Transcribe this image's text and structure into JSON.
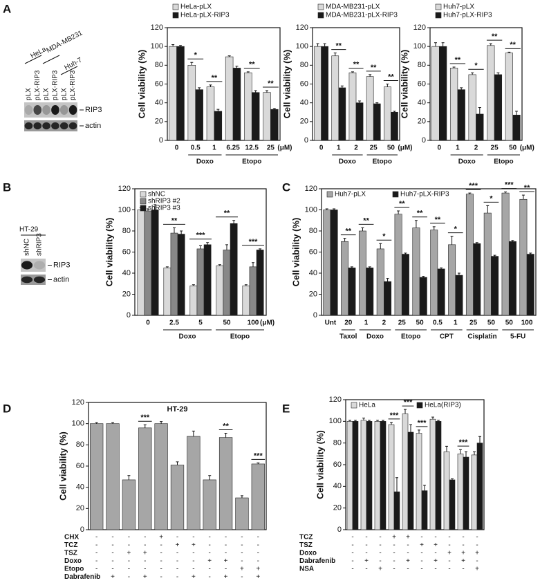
{
  "panels": [
    "A",
    "B",
    "C",
    "D",
    "E"
  ],
  "blots": [
    {
      "cell_lines": [
        "HeLa",
        "MDA-MB231",
        "Huh-7"
      ],
      "lanes": [
        "pLX",
        "pLX-RIP3",
        "pLX",
        "pLX-RIP3",
        "pLX",
        "pLX-RIP3"
      ],
      "bands": [
        "RIP3",
        "actin"
      ]
    },
    {
      "cell_lines": [
        "HT-29"
      ],
      "lanes": [
        "shNC",
        "shRIP3"
      ],
      "bands": [
        "RIP3",
        "actin"
      ]
    }
  ],
  "chart_data": [
    {
      "type": "bar",
      "ylabel": "Cell viability (%)",
      "ylim": [
        0,
        120
      ],
      "yticks": [
        0,
        20,
        40,
        60,
        80,
        100,
        120
      ],
      "legend": "above",
      "categories": [
        "0",
        "0.5",
        "1",
        "6.25",
        "12.5",
        "25"
      ],
      "x_unit": "(μM)",
      "groups": [
        {
          "name": null,
          "size": 1
        },
        {
          "name": "Doxo",
          "size": 2
        },
        {
          "name": "Etopo",
          "size": 3
        }
      ],
      "significance": [
        null,
        "*",
        "**",
        null,
        "**",
        "**"
      ],
      "series": [
        {
          "name": "HeLa-pLX",
          "color": "#d9d9d9",
          "values": [
            100,
            80,
            57,
            89,
            72,
            51
          ],
          "errors": [
            2,
            3,
            2,
            1,
            1,
            2
          ]
        },
        {
          "name": "HeLa-pLX-RIP3",
          "color": "#1a1a1a",
          "values": [
            100,
            54,
            31,
            77,
            51,
            33
          ],
          "errors": [
            1,
            2,
            2,
            2,
            2,
            1
          ]
        }
      ]
    },
    {
      "type": "bar",
      "ylabel": "Cell viability (%)",
      "ylim": [
        0,
        120
      ],
      "yticks": [
        0,
        20,
        40,
        60,
        80,
        100,
        120
      ],
      "legend": "above",
      "categories": [
        "0",
        "1",
        "2",
        "25",
        "50"
      ],
      "x_unit": "(μM)",
      "groups": [
        {
          "name": null,
          "size": 1
        },
        {
          "name": "Doxo",
          "size": 2
        },
        {
          "name": "Etopo",
          "size": 2
        }
      ],
      "significance": [
        null,
        "**",
        "**",
        "**",
        "**"
      ],
      "series": [
        {
          "name": "MDA-MB231-pLX",
          "color": "#d9d9d9",
          "values": [
            100,
            90,
            72,
            68,
            57
          ],
          "errors": [
            3,
            3,
            1,
            2,
            3
          ]
        },
        {
          "name": "MDA-MB231-pLX-RIP3",
          "color": "#1a1a1a",
          "values": [
            100,
            56,
            40,
            39,
            30
          ],
          "errors": [
            3,
            2,
            2,
            1,
            1
          ]
        }
      ]
    },
    {
      "type": "bar",
      "ylabel": "Cell viability (%)",
      "ylim": [
        0,
        120
      ],
      "yticks": [
        0,
        20,
        40,
        60,
        80,
        100,
        120
      ],
      "legend": "above",
      "categories": [
        "0",
        "1",
        "2",
        "25",
        "50"
      ],
      "x_unit": "(μM)",
      "groups": [
        {
          "name": null,
          "size": 1
        },
        {
          "name": "Doxo",
          "size": 2
        },
        {
          "name": "Etopo",
          "size": 2
        }
      ],
      "significance": [
        null,
        "**",
        "*",
        "**",
        "**"
      ],
      "series": [
        {
          "name": "Huh7-pLX",
          "color": "#d9d9d9",
          "values": [
            100,
            77,
            70,
            101,
            93
          ],
          "errors": [
            4,
            1,
            2,
            2,
            1
          ]
        },
        {
          "name": "Huh7-pLX-RIP3",
          "color": "#1a1a1a",
          "values": [
            100,
            54,
            28,
            70,
            27
          ],
          "errors": [
            4,
            2,
            7,
            2,
            4
          ]
        }
      ]
    },
    {
      "type": "bar",
      "ylabel": "Cell viability (%)",
      "ylim": [
        0,
        120
      ],
      "yticks": [
        0,
        20,
        40,
        60,
        80,
        100,
        120
      ],
      "legend": "upper left",
      "categories": [
        "0",
        "2.5",
        "5",
        "50",
        "100"
      ],
      "x_unit": "(μM)",
      "groups": [
        {
          "name": null,
          "size": 1
        },
        {
          "name": "Doxo",
          "size": 2
        },
        {
          "name": "Etopo",
          "size": 2
        }
      ],
      "significance": [
        null,
        "**",
        "***",
        "**",
        "***"
      ],
      "series": [
        {
          "name": "shNC",
          "color": "#d9d9d9",
          "values": [
            100,
            45,
            28,
            47,
            28
          ],
          "errors": [
            2,
            1,
            1,
            1,
            1
          ]
        },
        {
          "name": "shRIP3 #2",
          "color": "#888888",
          "values": [
            99,
            78,
            63,
            62,
            46
          ],
          "errors": [
            2,
            5,
            3,
            5,
            4
          ]
        },
        {
          "name": "shRIP3 #3",
          "color": "#1a1a1a",
          "values": [
            100,
            77,
            67,
            87,
            62
          ],
          "errors": [
            5,
            3,
            2,
            3,
            1
          ]
        }
      ]
    },
    {
      "type": "bar",
      "ylabel": "Cell viability (%)",
      "ylim": [
        0,
        120
      ],
      "yticks": [
        0,
        20,
        40,
        60,
        80,
        100,
        120
      ],
      "legend": "top",
      "categories": [
        "Unt",
        "20",
        "1",
        "2",
        "25",
        "50",
        "0.5",
        "1",
        "25",
        "50",
        "50",
        "100"
      ],
      "groups": [
        {
          "name": null,
          "size": 1
        },
        {
          "name": "Taxol",
          "size": 1
        },
        {
          "name": "Doxo",
          "size": 2
        },
        {
          "name": "Etopo",
          "size": 2
        },
        {
          "name": "CPT",
          "size": 2
        },
        {
          "name": "Cisplatin",
          "size": 2
        },
        {
          "name": "5-FU",
          "size": 2
        }
      ],
      "significance": [
        null,
        "**",
        "**",
        "*",
        "**",
        "**",
        "**",
        "*",
        "***",
        "*",
        "***",
        "**"
      ],
      "series": [
        {
          "name": "Huh7-pLX",
          "color": "#a6a6a6",
          "values": [
            100,
            70,
            80,
            63,
            96,
            83,
            81,
            67,
            115,
            97,
            116,
            110
          ],
          "errors": [
            1,
            3,
            3,
            5,
            3,
            7,
            3,
            8,
            1,
            7,
            1,
            4
          ]
        },
        {
          "name": "Huh7-pLX-RIP3",
          "color": "#1a1a1a",
          "values": [
            100,
            45,
            45,
            32,
            58,
            36,
            44,
            38,
            68,
            56,
            70,
            58
          ],
          "errors": [
            1,
            1,
            1,
            3,
            1,
            1,
            1,
            2,
            1,
            1,
            1,
            1
          ]
        }
      ]
    },
    {
      "type": "bar",
      "title": "HT-29",
      "ylabel": "Cell viability (%)",
      "ylim": [
        0,
        120
      ],
      "yticks": [
        0,
        20,
        40,
        60,
        80,
        100,
        120
      ],
      "color": "#a6a6a6",
      "values": [
        100,
        100,
        47,
        96,
        100,
        61,
        88,
        47,
        87,
        30,
        62
      ],
      "errors": [
        1,
        1,
        4,
        3,
        2,
        3,
        5,
        4,
        4,
        2,
        1
      ],
      "significance": [
        null,
        null,
        null,
        "***",
        null,
        null,
        null,
        null,
        "**",
        null,
        "***"
      ],
      "conditions": [
        {
          "name": "CHX",
          "marks": [
            "-",
            "-",
            "-",
            "-",
            "+",
            "-",
            "-",
            "-",
            "-",
            "-",
            "-"
          ]
        },
        {
          "name": "TCZ",
          "marks": [
            "-",
            "-",
            "-",
            "-",
            "-",
            "+",
            "+",
            "-",
            "-",
            "-",
            "-"
          ]
        },
        {
          "name": "TSZ",
          "marks": [
            "-",
            "-",
            "+",
            "+",
            "-",
            "-",
            "-",
            "-",
            "-",
            "-",
            "-"
          ]
        },
        {
          "name": "Doxo",
          "marks": [
            "-",
            "-",
            "-",
            "-",
            "-",
            "-",
            "-",
            "+",
            "+",
            "-",
            "-"
          ]
        },
        {
          "name": "Etopo",
          "marks": [
            "-",
            "-",
            "-",
            "-",
            "-",
            "-",
            "-",
            "-",
            "-",
            "+",
            "+"
          ]
        },
        {
          "name": "Dabrafenib",
          "marks": [
            "-",
            "+",
            "-",
            "+",
            "-",
            "-",
            "+",
            "-",
            "+",
            "-",
            "+"
          ]
        }
      ]
    },
    {
      "type": "bar",
      "ylabel": "Cell viability (%)",
      "ylim": [
        0,
        120
      ],
      "yticks": [
        0,
        20,
        40,
        60,
        80,
        100,
        120
      ],
      "legend": "top",
      "significance": [
        null,
        null,
        null,
        "***",
        "***",
        "***",
        null,
        null,
        "***",
        null
      ],
      "series": [
        {
          "name": "HeLa",
          "color": "#d9d9d9",
          "values": [
            100,
            101,
            100,
            97,
            107,
            89,
            102,
            72,
            70,
            69
          ],
          "errors": [
            1,
            2,
            1,
            2,
            4,
            3,
            2,
            5,
            4,
            3
          ]
        },
        {
          "name": "HeLa(RIP3)",
          "color": "#1a1a1a",
          "values": [
            100,
            100,
            100,
            35,
            90,
            36,
            100,
            46,
            67,
            80
          ],
          "errors": [
            1,
            1,
            1,
            13,
            7,
            5,
            1,
            1,
            5,
            6
          ]
        }
      ],
      "conditions": [
        {
          "name": "TCZ",
          "marks": [
            "-",
            "-",
            "-",
            "+",
            "+",
            "-",
            "-",
            "-",
            "-",
            "-"
          ]
        },
        {
          "name": "TSZ",
          "marks": [
            "-",
            "-",
            "-",
            "-",
            "-",
            "+",
            "+",
            "-",
            "-",
            "-"
          ]
        },
        {
          "name": "Doxo",
          "marks": [
            "-",
            "-",
            "-",
            "-",
            "-",
            "-",
            "-",
            "+",
            "+",
            "+"
          ]
        },
        {
          "name": "Dabrafenib",
          "marks": [
            "-",
            "+",
            "-",
            "-",
            "+",
            "-",
            "+",
            "-",
            "+",
            "-"
          ]
        },
        {
          "name": "NSA",
          "marks": [
            "-",
            "-",
            "+",
            "-",
            "-",
            "-",
            "-",
            "-",
            "-",
            "+"
          ]
        }
      ]
    }
  ]
}
